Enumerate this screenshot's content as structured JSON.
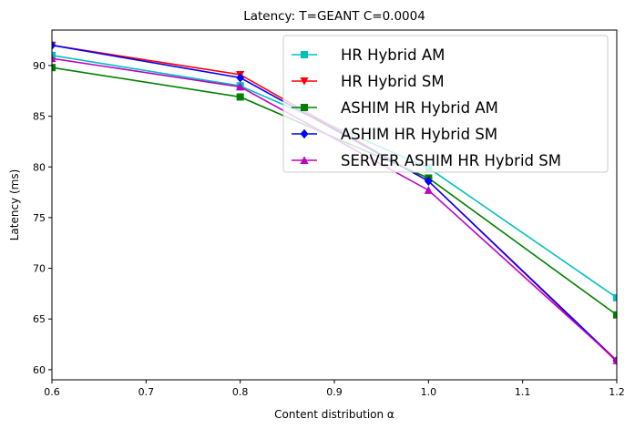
{
  "chart_data": {
    "type": "line",
    "title": "Latency: T=GEANT C=0.0004",
    "xlabel": "Content distribution α",
    "ylabel": "Latency (ms)",
    "xlim": [
      0.6,
      1.2
    ],
    "ylim": [
      59,
      93.5
    ],
    "xticks": [
      "0.6",
      "0.7",
      "0.8",
      "0.9",
      "1.0",
      "1.1",
      "1.2"
    ],
    "yticks": [
      "60",
      "65",
      "70",
      "75",
      "80",
      "85",
      "90"
    ],
    "grid": false,
    "legend_position": "top-right",
    "x": [
      0.6,
      0.8,
      1.0,
      1.2
    ],
    "series": [
      {
        "name": "HR Hybrid AM",
        "values": [
          91.0,
          88.0,
          79.9,
          67.1
        ],
        "color": "#00bfbf",
        "marker": "square"
      },
      {
        "name": "HR Hybrid SM",
        "values": [
          92.0,
          89.1,
          78.6,
          60.8
        ],
        "color": "#ff0000",
        "marker": "triangle-down"
      },
      {
        "name": "ASHIM HR Hybrid AM",
        "values": [
          89.8,
          86.9,
          78.9,
          65.4
        ],
        "color": "#008000",
        "marker": "square"
      },
      {
        "name": "ASHIM HR Hybrid SM",
        "values": [
          92.0,
          88.8,
          78.6,
          60.9
        ],
        "color": "#0000ff",
        "marker": "diamond"
      },
      {
        "name": "SERVER ASHIM HR Hybrid SM",
        "values": [
          90.7,
          87.9,
          77.7,
          60.9
        ],
        "color": "#bf00bf",
        "marker": "triangle-up"
      }
    ]
  }
}
